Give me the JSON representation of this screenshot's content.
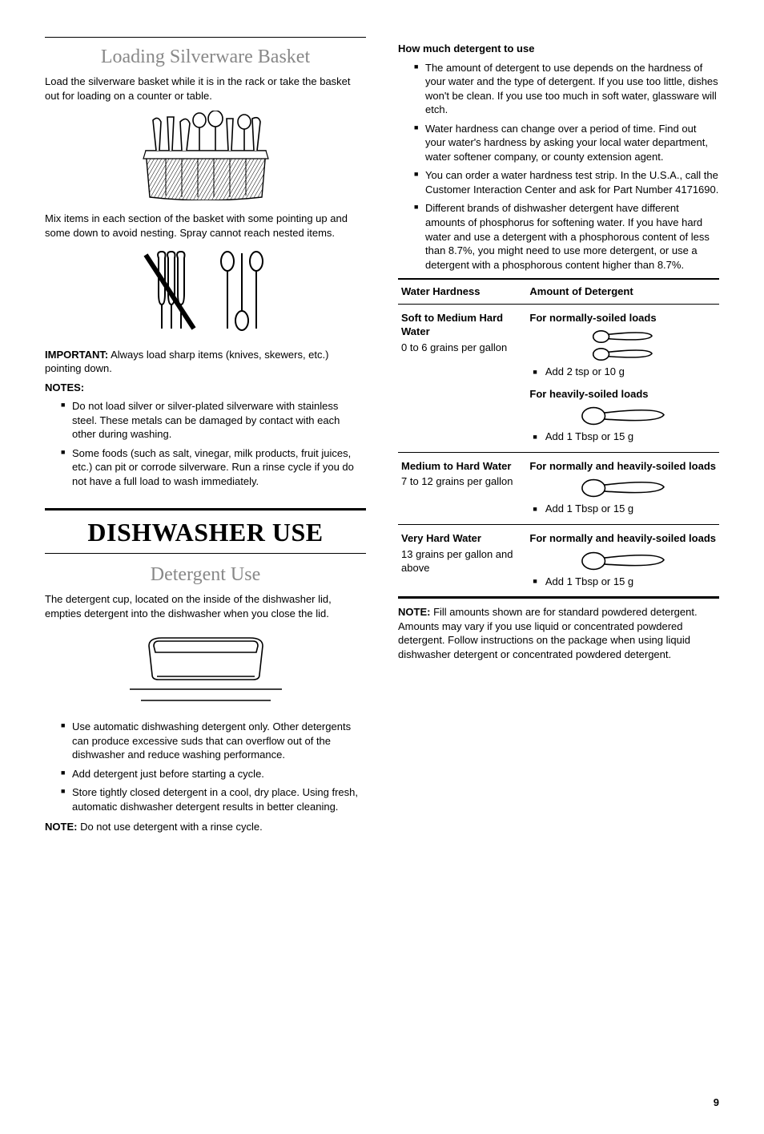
{
  "left": {
    "h_loading": "Loading Silverware Basket",
    "p_load": "Load the silverware basket while it is in the rack or take the basket out for loading on a counter or table.",
    "p_mix": "Mix items in each section of the basket with some pointing up and some down to avoid nesting. Spray cannot reach nested items.",
    "important_label": "IMPORTANT:",
    "important_text": " Always load sharp items (knives, skewers, etc.) pointing down.",
    "notes_label": "NOTES:",
    "notes": [
      "Do not load silver or silver-plated silverware with stainless steel. These metals can be damaged by contact with each other during washing.",
      "Some foods (such as salt, vinegar, milk products, fruit juices, etc.) can pit or corrode silverware. Run a rinse cycle if you do not have a full load to wash immediately."
    ],
    "h_main": "DISHWASHER USE",
    "h_detergent": "Detergent Use",
    "p_detergent": "The detergent cup, located on the inside of the dishwasher lid, empties detergent into the dishwasher when you close the lid.",
    "detergent_bullets": [
      "Use automatic dishwashing detergent only. Other detergents can produce excessive suds that can overflow out of the dishwasher and reduce washing performance.",
      "Add detergent just before starting a cycle.",
      "Store tightly closed detergent in a cool, dry place. Using fresh, automatic dishwasher detergent results in better cleaning."
    ],
    "note2_label": "NOTE:",
    "note2_text": " Do not use detergent with a rinse cycle."
  },
  "right": {
    "h_howmuch": "How much detergent to use",
    "howmuch_bullets": [
      "The amount of detergent to use depends on the hardness of your water and the type of detergent. If you use too little, dishes won't be clean. If you use too much in soft water, glassware will etch.",
      "Water hardness can change over a period of time. Find out your water's hardness by asking your local water department, water softener company, or county extension agent.",
      "You can order a water hardness test strip. In the U.S.A., call the Customer Interaction Center and ask for Part Number 4171690.",
      "Different brands of dishwasher detergent have different amounts of phosphorus for softening water. If you have hard water and use a detergent with a phosphorous content of less than 8.7%, you might need to use more detergent, or use a detergent with a phosphorous content higher than 8.7%."
    ],
    "table": {
      "col1": "Water Hardness",
      "col2": "Amount of Detergent",
      "rows": [
        {
          "hard_title": "Soft to Medium Hard Water",
          "hard_sub": "0 to 6 grains per gallon",
          "amounts": [
            {
              "head": "For normally-soiled loads",
              "scoops": 2,
              "text": "Add 2 tsp or 10 g"
            },
            {
              "head": "For heavily-soiled loads",
              "scoops": 1,
              "big": true,
              "text": "Add 1 Tbsp or 15 g"
            }
          ]
        },
        {
          "hard_title": "Medium to Hard Water",
          "hard_sub": "7 to 12 grains per gallon",
          "amounts": [
            {
              "head": "For normally and heavily-soiled loads",
              "scoops": 1,
              "big": true,
              "text": "Add 1 Tbsp or 15 g"
            }
          ]
        },
        {
          "hard_title": "Very Hard Water",
          "hard_sub": "13 grains per gallon and above",
          "amounts": [
            {
              "head": "For normally and heavily-soiled loads",
              "scoops": 1,
              "big": true,
              "text": "Add 1 Tbsp or 15 g"
            }
          ]
        }
      ]
    },
    "note3_label": "NOTE:",
    "note3_text": " Fill amounts shown are for standard powdered detergent. Amounts may vary if you use liquid or concentrated powdered detergent. Follow instructions on the package when using liquid dishwasher detergent or concentrated powdered detergent."
  },
  "page_number": "9",
  "colors": {
    "text": "#000000",
    "subhead": "#888888",
    "rule": "#000000"
  }
}
